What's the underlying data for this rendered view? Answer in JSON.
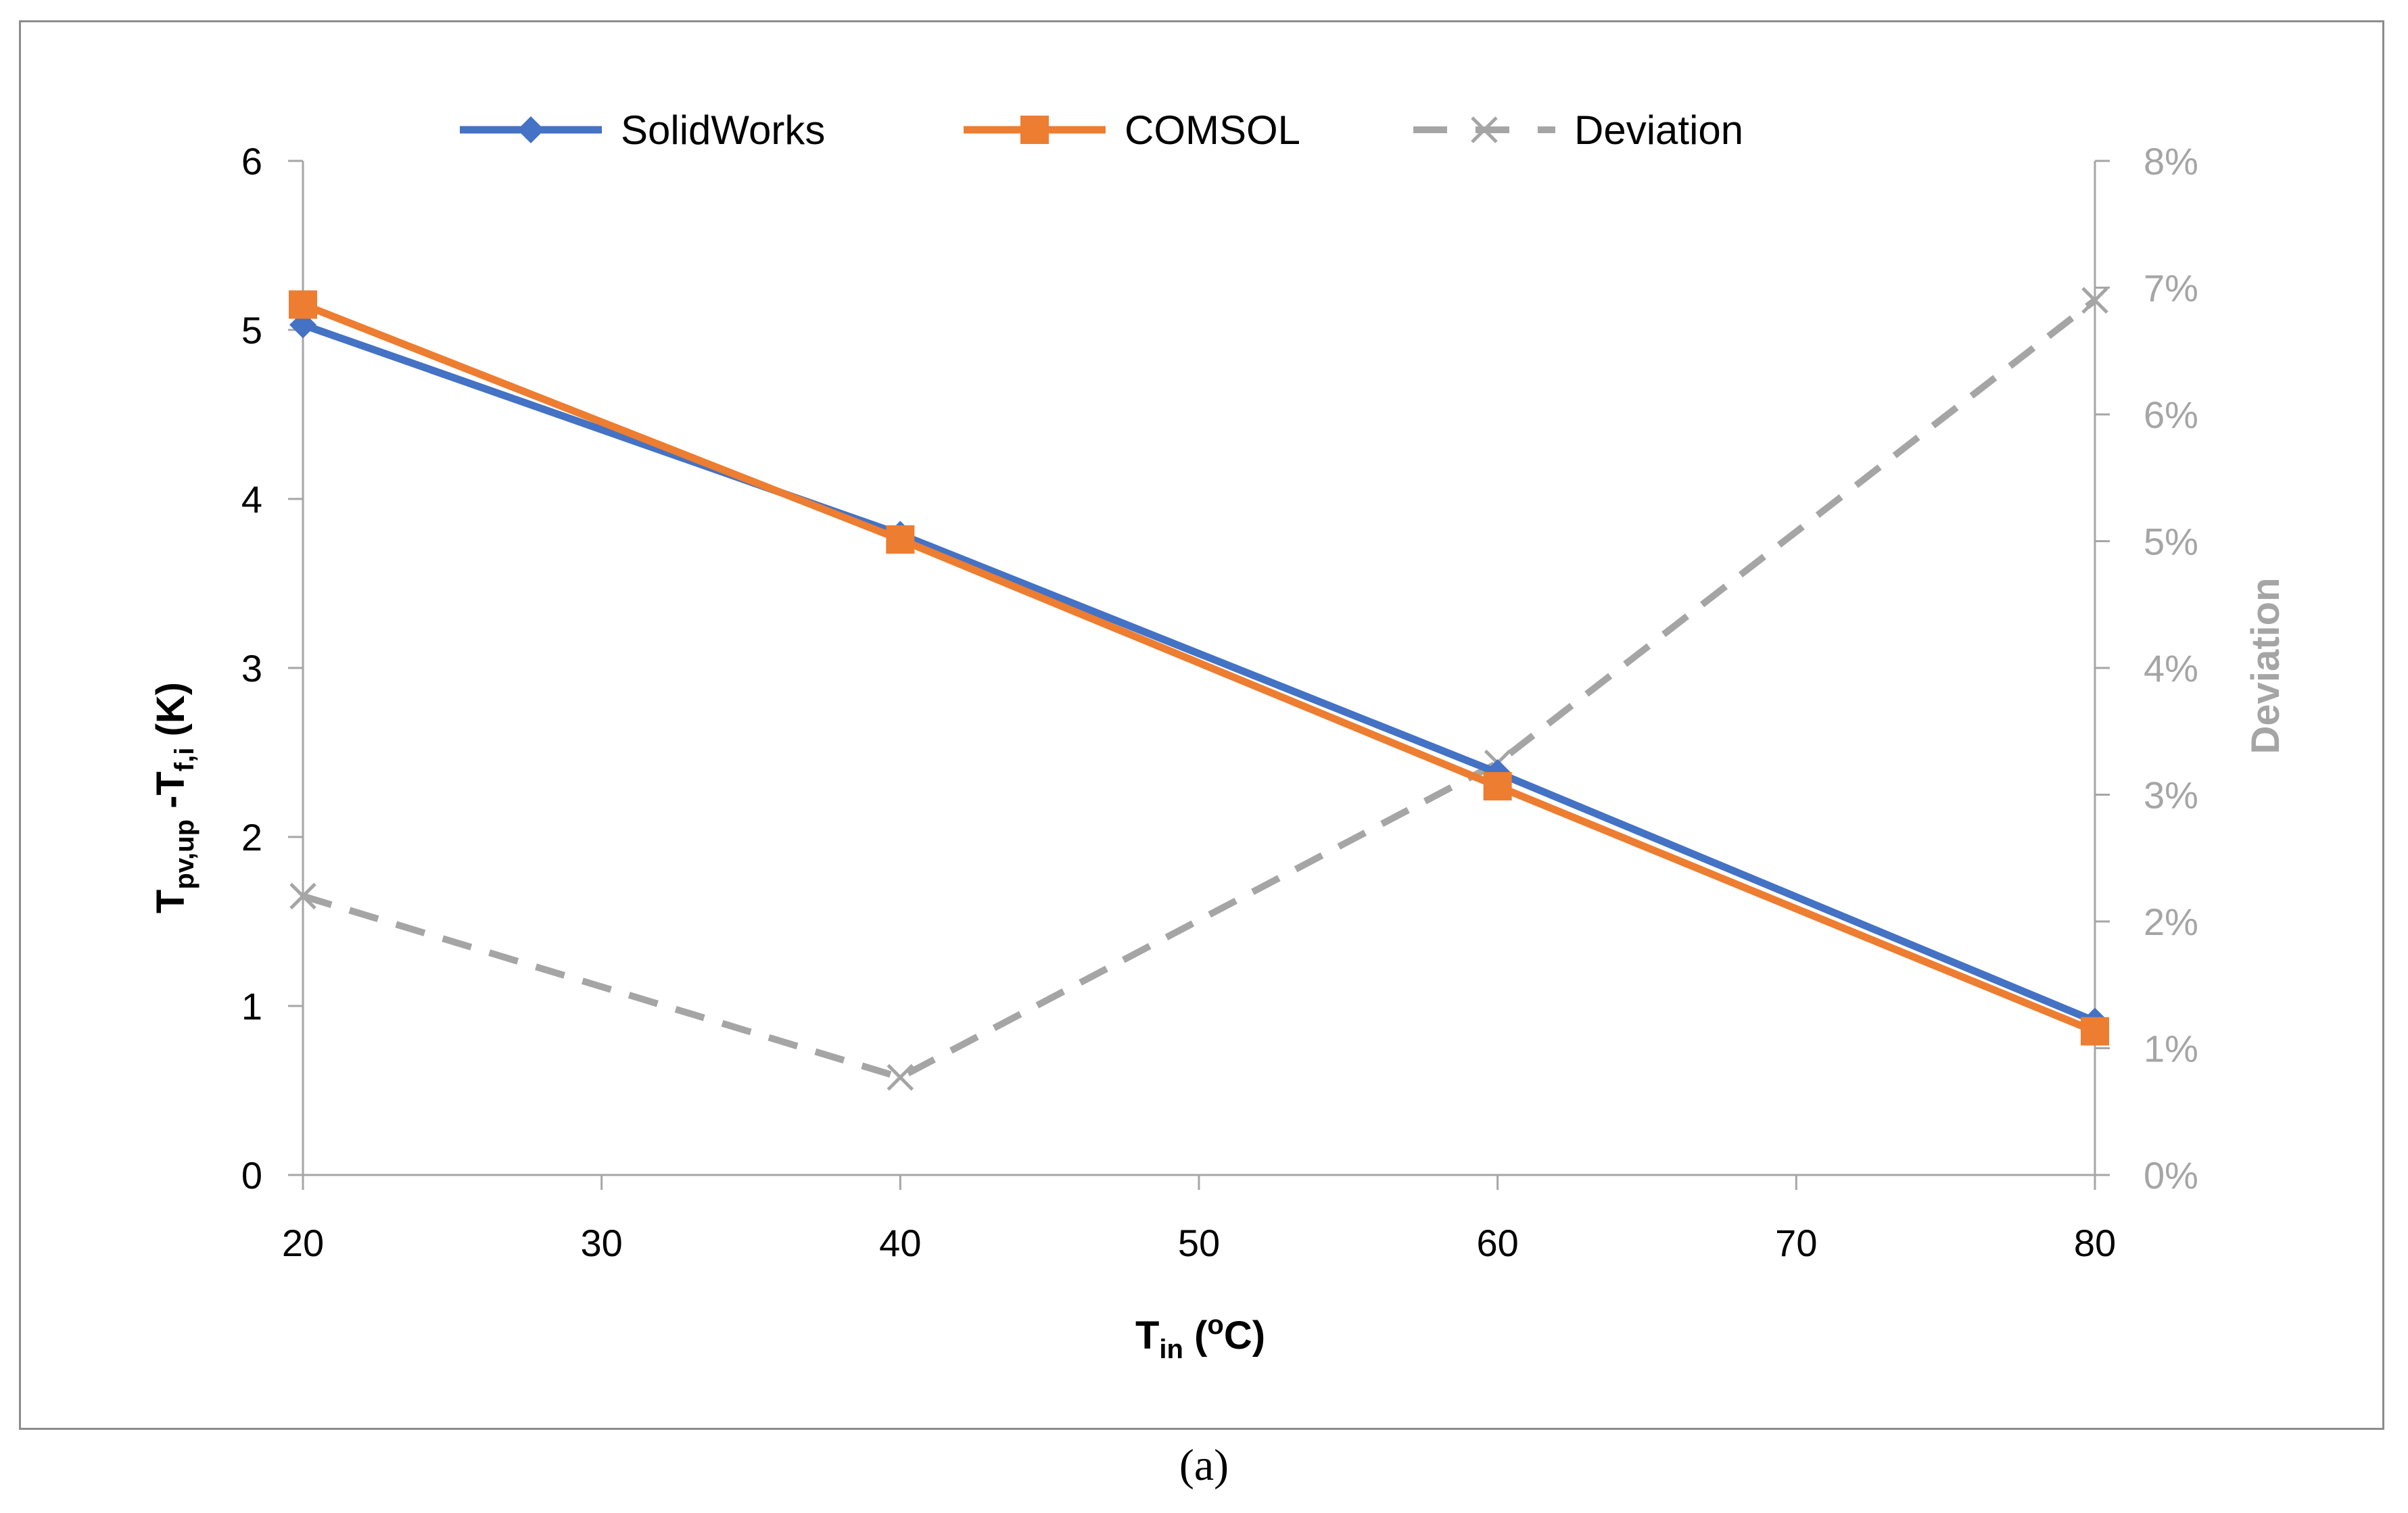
{
  "caption": "(a)",
  "colors": {
    "solidworks": "#4472c4",
    "comsol": "#ed7d31",
    "deviation": "#a5a5a5",
    "axis": "#a6a6a6"
  },
  "chart_data": {
    "type": "line",
    "x": [
      20,
      40,
      60,
      80
    ],
    "xlim": [
      20,
      80
    ],
    "xticks": [
      20,
      30,
      40,
      50,
      60,
      70,
      80
    ],
    "xlabel": {
      "main": "T",
      "sub": "in",
      "rest_open": " (",
      "sup": "o",
      "rest_close": "C)"
    },
    "ylabel_left": {
      "main": "T",
      "sub1": "pv,up",
      "mid": " -T",
      "sub2": "f,i",
      "rest": " (K)"
    },
    "ylim_left": [
      0,
      6
    ],
    "yticks_left": [
      "0",
      "1",
      "2",
      "3",
      "4",
      "5",
      "6"
    ],
    "ylabel_right": "Deviation",
    "ylim_right": [
      0,
      8
    ],
    "yticks_right": [
      "0%",
      "1%",
      "2%",
      "3%",
      "4%",
      "5%",
      "6%",
      "7%",
      "8%"
    ],
    "legend_position": "top",
    "grid": false,
    "series": [
      {
        "name": "SolidWorks",
        "axis": "left",
        "marker": "diamond",
        "style": "solid",
        "values": [
          5.03,
          3.79,
          2.38,
          0.91
        ]
      },
      {
        "name": "COMSOL",
        "axis": "left",
        "marker": "square",
        "style": "solid",
        "values": [
          5.15,
          3.76,
          2.3,
          0.85
        ]
      },
      {
        "name": "Deviation",
        "axis": "right",
        "marker": "x",
        "style": "dashed",
        "values": [
          2.2,
          0.77,
          3.25,
          6.9
        ]
      }
    ]
  }
}
